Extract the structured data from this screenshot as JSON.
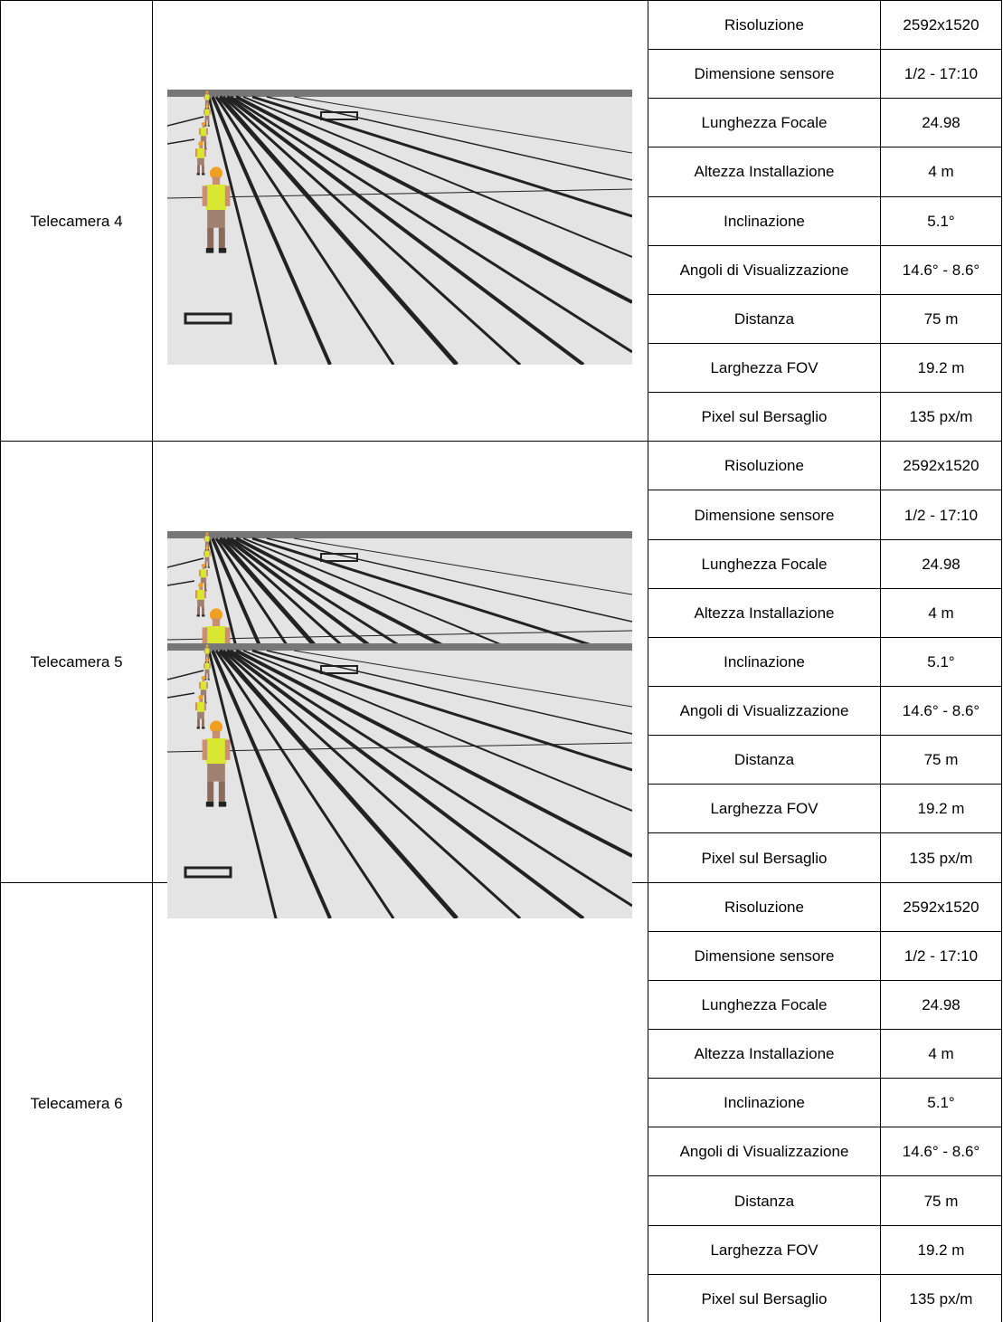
{
  "cameras": [
    {
      "name": "Telecamera 4",
      "parameters": [
        {
          "label": "Risoluzione",
          "value": "2592x1520"
        },
        {
          "label": "Dimensione sensore",
          "value": "1/2 - 17:10"
        },
        {
          "label": "Lunghezza Focale",
          "value": "24.98"
        },
        {
          "label": "Altezza Installazione",
          "value": "4 m"
        },
        {
          "label": "Inclinazione",
          "value": "5.1°"
        },
        {
          "label": "Angoli di Visualizzazione",
          "value": "14.6° - 8.6°"
        },
        {
          "label": "Distanza",
          "value": "75 m"
        },
        {
          "label": "Larghezza FOV",
          "value": "19.2 m"
        },
        {
          "label": "Pixel sul Bersaglio",
          "value": "135 px/m"
        }
      ]
    },
    {
      "name": "Telecamera 5",
      "parameters": [
        {
          "label": "Risoluzione",
          "value": "2592x1520"
        },
        {
          "label": "Dimensione sensore",
          "value": "1/2 - 17:10"
        },
        {
          "label": "Lunghezza Focale",
          "value": "24.98"
        },
        {
          "label": "Altezza Installazione",
          "value": "4 m"
        },
        {
          "label": "Inclinazione",
          "value": "5.1°"
        },
        {
          "label": "Angoli di Visualizzazione",
          "value": "14.6° - 8.6°"
        },
        {
          "label": "Distanza",
          "value": "75 m"
        },
        {
          "label": "Larghezza FOV",
          "value": "19.2 m"
        },
        {
          "label": "Pixel sul Bersaglio",
          "value": "135 px/m"
        }
      ]
    },
    {
      "name": "Telecamera 6",
      "parameters": [
        {
          "label": "Risoluzione",
          "value": "2592x1520"
        },
        {
          "label": "Dimensione sensore",
          "value": "1/2 - 17:10"
        },
        {
          "label": "Lunghezza Focale",
          "value": "24.98"
        },
        {
          "label": "Altezza Installazione",
          "value": "4 m"
        },
        {
          "label": "Inclinazione",
          "value": "5.1°"
        },
        {
          "label": "Angoli di Visualizzazione",
          "value": "14.6° - 8.6°"
        },
        {
          "label": "Distanza",
          "value": "75 m"
        },
        {
          "label": "Larghezza FOV",
          "value": "19.2 m"
        },
        {
          "label": "Pixel sul Bersaglio",
          "value": "135 px/m"
        }
      ]
    }
  ]
}
